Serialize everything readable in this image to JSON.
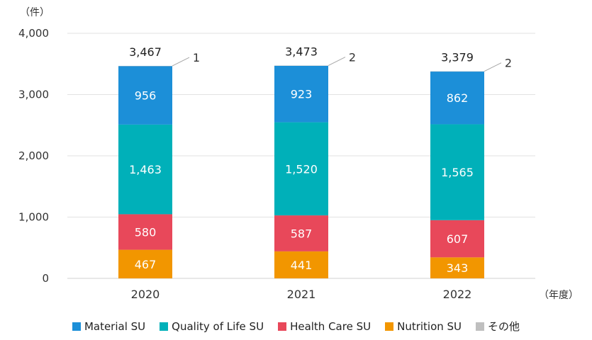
{
  "chart_data": {
    "type": "bar",
    "stacked": true,
    "unit_label": "（件）",
    "xlabel": "（年度）",
    "categories": [
      "2020",
      "2021",
      "2022"
    ],
    "ylim": [
      0,
      4000
    ],
    "yticks": [
      "0",
      "1,000",
      "2,000",
      "3,000",
      "4,000"
    ],
    "grid": true,
    "legend_position": "bottom",
    "series": [
      {
        "name": "Nutrition SU",
        "color": "#F29600",
        "values": [
          467,
          441,
          343
        ],
        "labels": [
          "467",
          "441",
          "343"
        ]
      },
      {
        "name": "Health Care SU",
        "color": "#E8485A",
        "values": [
          580,
          587,
          607
        ],
        "labels": [
          "580",
          "587",
          "607"
        ]
      },
      {
        "name": "Quality of Life SU",
        "color": "#00B0B9",
        "values": [
          1463,
          1520,
          1565
        ],
        "labels": [
          "1,463",
          "1,520",
          "1,565"
        ]
      },
      {
        "name": "Material SU",
        "color": "#1C8FD8",
        "values": [
          956,
          923,
          862
        ],
        "labels": [
          "956",
          "923",
          "862"
        ]
      },
      {
        "name": "その他",
        "color": "#BFBFBF",
        "values": [
          1,
          2,
          2
        ],
        "labels": [
          "1",
          "2",
          "2"
        ]
      }
    ],
    "totals": [
      "3,467",
      "3,473",
      "3,379"
    ]
  },
  "legend": [
    {
      "label": "Material SU",
      "color": "#1C8FD8"
    },
    {
      "label": "Quality of Life SU",
      "color": "#00B0B9"
    },
    {
      "label": "Health Care SU",
      "color": "#E8485A"
    },
    {
      "label": "Nutrition SU",
      "color": "#F29600"
    },
    {
      "label": "その他",
      "color": "#BFBFBF"
    }
  ]
}
